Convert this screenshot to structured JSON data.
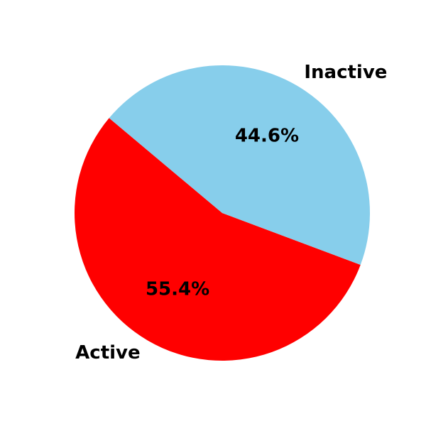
{
  "chart_data": {
    "type": "pie",
    "title": "",
    "slices": [
      {
        "label": "Active",
        "value": 55.4,
        "pct_label": "55.4%",
        "color": "#ff0000"
      },
      {
        "label": "Inactive",
        "value": 44.6,
        "pct_label": "44.6%",
        "color": "#87ceeb"
      }
    ],
    "start_angle_deg": 140,
    "direction": "counterclockwise",
    "legend": "none"
  }
}
